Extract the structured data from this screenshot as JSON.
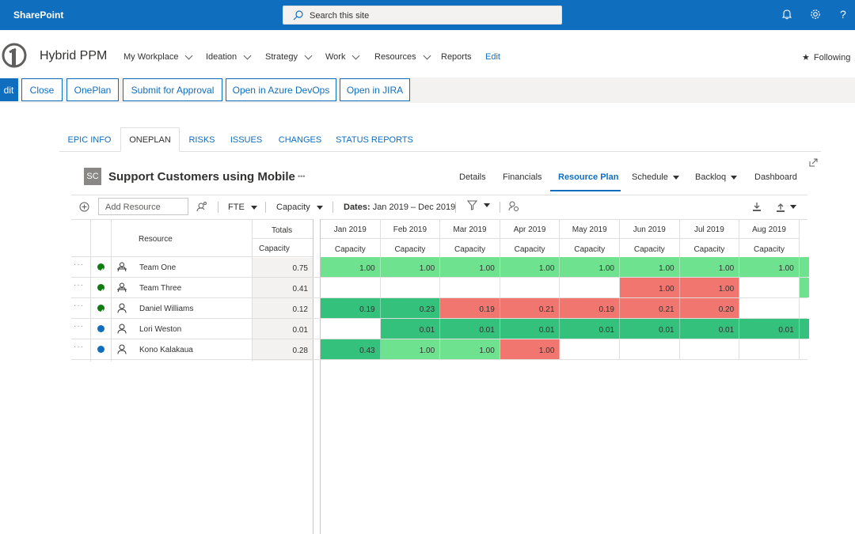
{
  "suite": {
    "app_name": "SharePoint",
    "search_placeholder": "Search this site"
  },
  "site": {
    "title": "Hybrid PPM",
    "nav": [
      "My Workplace",
      "Ideation",
      "Strategy",
      "Work",
      "Resources",
      "Reports",
      "Edit"
    ],
    "following_label": "Following"
  },
  "commands": [
    "dit",
    "Close",
    "OnePlan",
    "Submit for Approval",
    "Open in Azure DevOps",
    "Open in JIRA"
  ],
  "tabs": [
    "EPIC INFO",
    "ONEPLAN",
    "RISKS",
    "ISSUES",
    "CHANGES",
    "STATUS REPORTS"
  ],
  "project": {
    "initials": "SC",
    "title": "Support Customers using Mobile",
    "more": "•••"
  },
  "subtabs": [
    "Details",
    "Financials",
    "Resource Plan",
    "Schedule",
    "Backloq",
    "Dashboard"
  ],
  "toolbar": {
    "add_resource_placeholder": "Add Resource",
    "units": "FTE",
    "measure": "Capacity",
    "dates_label": "Dates:",
    "dates_value": "Jan 2019 – Dec 2019"
  },
  "grid": {
    "resource_header": "Resource",
    "totals_header": "Totals",
    "capacity_label": "Capacity",
    "months": [
      "Jan 2019",
      "Feb 2019",
      "Mar 2019",
      "Apr 2019",
      "May 2019",
      "Jun 2019",
      "Jul 2019",
      "Aug 2019"
    ],
    "rows": [
      {
        "name": "Team One",
        "status": "approved",
        "type": "team",
        "total": "0.75",
        "cells": [
          "1.00",
          "1.00",
          "1.00",
          "1.00",
          "1.00",
          "1.00",
          "1.00",
          "1.00"
        ],
        "colors": [
          "#6ee28f",
          "#6ee28f",
          "#6ee28f",
          "#6ee28f",
          "#6ee28f",
          "#6ee28f",
          "#6ee28f",
          "#6ee28f"
        ]
      },
      {
        "name": "Team Three",
        "status": "approved",
        "type": "team",
        "total": "0.41",
        "cells": [
          "",
          "",
          "",
          "",
          "",
          "1.00",
          "1.00",
          ""
        ],
        "colors": [
          "",
          "",
          "",
          "",
          "",
          "#f17670",
          "#f17670",
          ""
        ]
      },
      {
        "name": "Daniel Williams",
        "status": "approved",
        "type": "person",
        "total": "0.12",
        "cells": [
          "0.19",
          "0.23",
          "0.19",
          "0.21",
          "0.19",
          "0.21",
          "0.20",
          ""
        ],
        "colors": [
          "#34c17b",
          "#34c17b",
          "#f17670",
          "#f17670",
          "#f17670",
          "#f17670",
          "#f17670",
          ""
        ]
      },
      {
        "name": "Lori Weston",
        "status": "pending",
        "type": "person",
        "total": "0.01",
        "cells": [
          "",
          "0.01",
          "0.01",
          "0.01",
          "0.01",
          "0.01",
          "0.01",
          "0.01"
        ],
        "colors": [
          "",
          "#34c17b",
          "#34c17b",
          "#34c17b",
          "#34c17b",
          "#34c17b",
          "#34c17b",
          "#34c17b"
        ]
      },
      {
        "name": "Kono Kalakaua",
        "status": "pending",
        "type": "person",
        "total": "0.28",
        "cells": [
          "0.43",
          "1.00",
          "1.00",
          "1.00",
          "",
          "",
          "",
          ""
        ],
        "colors": [
          "#34c17b",
          "#6ee28f",
          "#6ee28f",
          "#f17670",
          "",
          "",
          "",
          ""
        ]
      }
    ]
  },
  "colors": {
    "brand": "#106ebe",
    "approved": "#107c10",
    "pending": "#106ebe"
  }
}
